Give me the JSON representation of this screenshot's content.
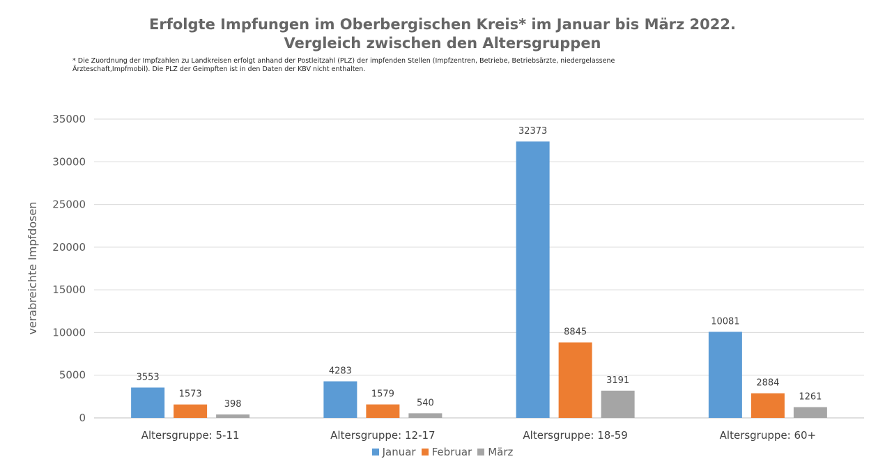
{
  "title_line1": "Erfolgte Impfungen im Oberbergischen Kreis* im Januar bis März 2022.",
  "title_line2": "Vergleich zwischen den Altersgruppen",
  "footnote_line1": "* Die Zuordnung der Impfzahlen zu Landkreisen erfolgt anhand der Postleitzahl (PLZ) der impfenden Stellen (Impfzentren, Betriebe, Betriebsärzte, niedergelassene",
  "footnote_line2": "Ärzteschaft,Impfmobil). Die PLZ der Geimpften ist in den Daten der KBV nicht enthalten.",
  "chart_data": {
    "type": "bar",
    "title": "Erfolgte Impfungen im Oberbergischen Kreis* im Januar bis März 2022. Vergleich zwischen den Altersgruppen",
    "xlabel": "",
    "ylabel": "verabreichte Impfdosen",
    "ylim": [
      0,
      35000
    ],
    "yticks": [
      "0",
      "5000",
      "10000",
      "15000",
      "20000",
      "25000",
      "30000",
      "35000"
    ],
    "grid": true,
    "legend_position": "bottom",
    "categories": [
      "Altersgruppe: 5-11",
      "Altersgruppe: 12-17",
      "Altersgruppe: 18-59",
      "Altersgruppe: 60+"
    ],
    "series": [
      {
        "name": "Januar",
        "color": "#5B9BD5",
        "values": [
          3553,
          4283,
          32373,
          10081
        ]
      },
      {
        "name": "Februar",
        "color": "#ED7D31",
        "values": [
          1573,
          1579,
          8845,
          2884
        ]
      },
      {
        "name": "März",
        "color": "#A5A5A5",
        "values": [
          398,
          540,
          3191,
          1261
        ]
      }
    ]
  }
}
